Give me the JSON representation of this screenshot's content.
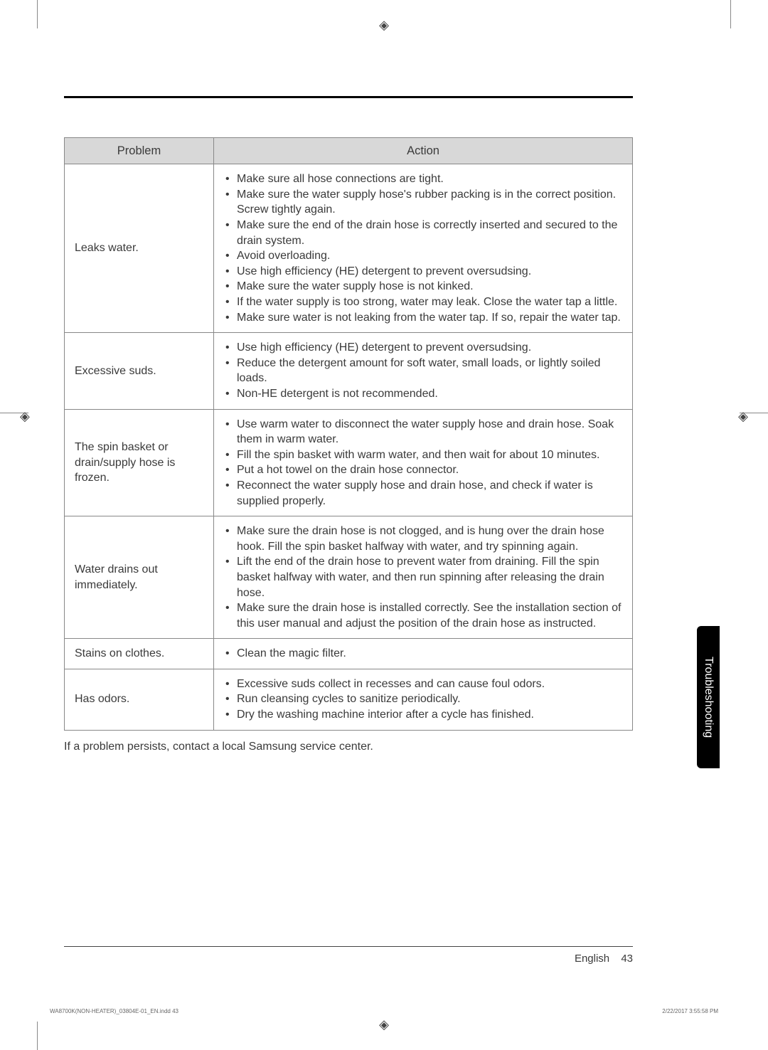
{
  "table": {
    "headers": {
      "problem": "Problem",
      "action": "Action"
    },
    "rows": [
      {
        "problem": "Leaks water.",
        "actions": [
          "Make sure all hose connections are tight.",
          "Make sure the water supply hose's rubber packing is in the correct position. Screw tightly again.",
          "Make sure the end of the drain hose is correctly inserted and secured to the drain system.",
          "Avoid overloading.",
          "Use high efficiency (HE) detergent to prevent oversudsing.",
          "Make sure the water supply hose is not kinked.",
          "If the water supply is too strong, water may leak. Close the water tap a little.",
          "Make sure water is not leaking from the water tap. If so, repair the water tap."
        ]
      },
      {
        "problem": "Excessive suds.",
        "actions": [
          "Use high efficiency (HE) detergent to prevent oversudsing.",
          "Reduce the detergent amount for soft water, small loads, or lightly soiled loads.",
          "Non-HE detergent is not recommended."
        ]
      },
      {
        "problem": "The spin basket or drain/supply hose is frozen.",
        "actions": [
          "Use warm water to disconnect the water supply hose and drain hose. Soak them in warm water.",
          "Fill the spin basket with warm water, and then wait for about 10 minutes.",
          "Put a hot towel on the drain hose connector.",
          "Reconnect the water supply hose and drain hose, and check if water is supplied properly."
        ]
      },
      {
        "problem": "Water drains out immediately.",
        "actions": [
          "Make sure the drain hose is not clogged, and is hung over the drain hose hook. Fill the spin basket halfway with water, and try spinning again.",
          "Lift the end of the drain hose to prevent water from draining. Fill the spin basket halfway with water, and then run spinning after releasing the drain hose.",
          "Make sure the drain hose is installed correctly. See the installation section of this user manual and adjust the position of the drain hose as instructed."
        ]
      },
      {
        "problem": "Stains on clothes.",
        "actions": [
          "Clean the magic filter."
        ]
      },
      {
        "problem": "Has odors.",
        "actions": [
          "Excessive suds collect in recesses and can cause foul odors.",
          "Run cleansing cycles to sanitize periodically.",
          "Dry the washing machine interior after a cycle has finished."
        ]
      }
    ]
  },
  "note": "If a problem persists, contact a local Samsung service center.",
  "side_tab": "Troubleshooting",
  "footer": {
    "lang": "English",
    "page": "43"
  },
  "spine": {
    "left": "WA8700K(NON-HEATER)_03804E-01_EN.indd   43",
    "right": "2/22/2017   3:55:58 PM"
  }
}
